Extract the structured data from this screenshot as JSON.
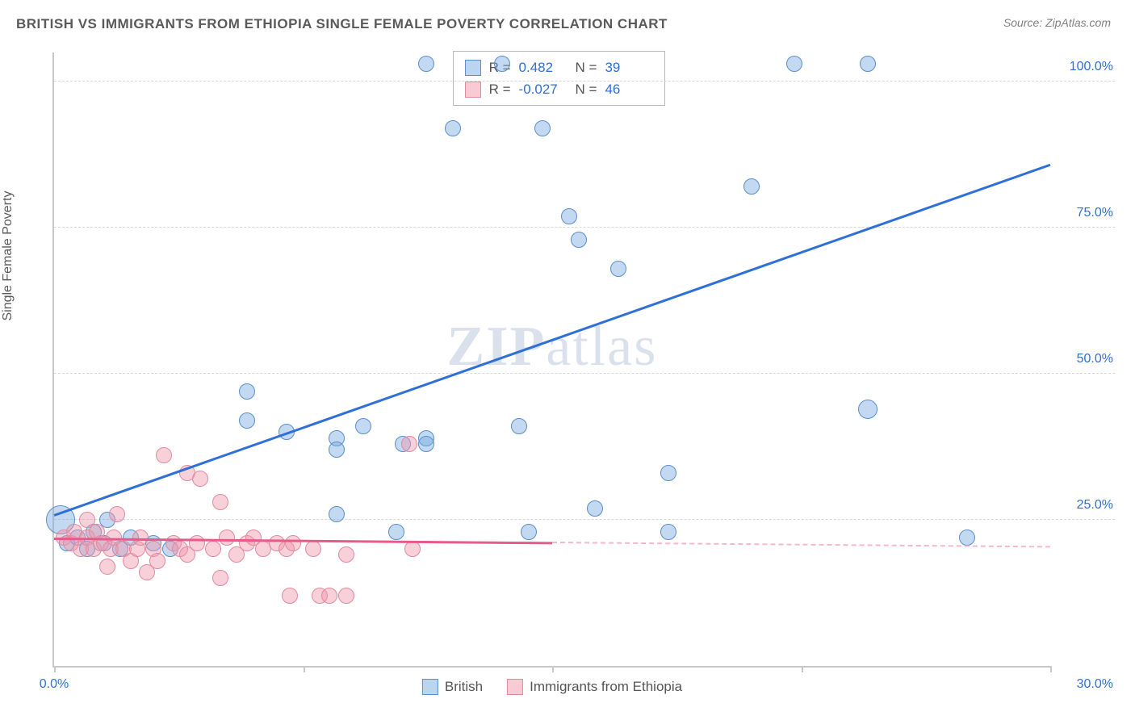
{
  "title": "BRITISH VS IMMIGRANTS FROM ETHIOPIA SINGLE FEMALE POVERTY CORRELATION CHART",
  "source": "Source: ZipAtlas.com",
  "ylabel": "Single Female Poverty",
  "watermark_bold": "ZIP",
  "watermark_rest": "atlas",
  "chart": {
    "type": "scatter",
    "xlim": [
      0,
      30
    ],
    "ylim": [
      0,
      105
    ],
    "yticks": [
      25,
      50,
      75,
      100
    ],
    "ytick_labels": [
      "25.0%",
      "50.0%",
      "75.0%",
      "100.0%"
    ],
    "xticks": [
      0,
      30
    ],
    "xtick_labels": [
      "0.0%",
      "30.0%"
    ],
    "xtick_marks": [
      0,
      7.5,
      15,
      22.5,
      30
    ],
    "background_color": "#ffffff",
    "grid_color": "#d8d8d8",
    "axis_color": "#c8c8c8",
    "text_color": "#5a5a5a",
    "tick_label_color": "#2e6fd8",
    "marker_radius": 10,
    "big_marker_radius": 18,
    "series": [
      {
        "name": "British",
        "color_fill": "rgba(120,170,225,0.45)",
        "color_stroke": "#5b8fce",
        "r": 0.482,
        "n": 39,
        "regression": {
          "x1": 0,
          "y1": 26,
          "x2": 30,
          "y2": 86,
          "color": "#2e6fd8"
        },
        "points": [
          [
            0.2,
            25,
            18
          ],
          [
            0.4,
            21,
            10
          ],
          [
            0.7,
            22,
            10
          ],
          [
            1.0,
            20,
            10
          ],
          [
            1.2,
            23,
            10
          ],
          [
            1.5,
            21,
            10
          ],
          [
            1.6,
            25,
            10
          ],
          [
            2.0,
            20,
            10
          ],
          [
            2.3,
            22,
            10
          ],
          [
            3.0,
            21,
            10
          ],
          [
            3.5,
            20,
            10
          ],
          [
            5.8,
            47,
            10
          ],
          [
            5.8,
            42,
            10
          ],
          [
            7.0,
            40,
            10
          ],
          [
            8.5,
            39,
            10
          ],
          [
            8.5,
            37,
            10
          ],
          [
            8.5,
            26,
            10
          ],
          [
            9.3,
            41,
            10
          ],
          [
            10.5,
            38,
            10
          ],
          [
            10.3,
            23,
            10
          ],
          [
            11.2,
            39,
            10
          ],
          [
            11.2,
            38,
            10
          ],
          [
            11.2,
            103,
            10
          ],
          [
            12.0,
            92,
            10
          ],
          [
            13.5,
            103,
            10
          ],
          [
            14.0,
            41,
            10
          ],
          [
            14.3,
            23,
            10
          ],
          [
            14.7,
            92,
            10
          ],
          [
            15.5,
            77,
            10
          ],
          [
            15.8,
            73,
            10
          ],
          [
            16.3,
            27,
            10
          ],
          [
            17.0,
            68,
            10
          ],
          [
            18.5,
            23,
            10
          ],
          [
            18.5,
            33,
            10
          ],
          [
            21.0,
            82,
            10
          ],
          [
            22.3,
            103,
            10
          ],
          [
            24.5,
            103,
            10
          ],
          [
            24.5,
            44,
            12
          ],
          [
            27.5,
            22,
            10
          ]
        ]
      },
      {
        "name": "Immigrants from Ethiopia",
        "color_fill": "rgba(240,150,170,0.45)",
        "color_stroke": "#e28aa0",
        "r": -0.027,
        "n": 46,
        "regression": {
          "x1": 0,
          "y1": 22,
          "x2": 30,
          "y2": 20.5,
          "color": "#e85a8a",
          "solid_until_x": 15
        },
        "points": [
          [
            0.3,
            22,
            10
          ],
          [
            0.5,
            21,
            10
          ],
          [
            0.6,
            23,
            10
          ],
          [
            0.8,
            20,
            10
          ],
          [
            1.0,
            22,
            10
          ],
          [
            1.0,
            25,
            10
          ],
          [
            1.2,
            20,
            10
          ],
          [
            1.3,
            23,
            10
          ],
          [
            1.4,
            21,
            10
          ],
          [
            1.6,
            17,
            10
          ],
          [
            1.7,
            20,
            10
          ],
          [
            1.8,
            22,
            10
          ],
          [
            1.9,
            26,
            10
          ],
          [
            2.1,
            20,
            10
          ],
          [
            2.3,
            18,
            10
          ],
          [
            2.5,
            20,
            10
          ],
          [
            2.6,
            22,
            10
          ],
          [
            2.8,
            16,
            10
          ],
          [
            3.0,
            20,
            10
          ],
          [
            3.1,
            18,
            10
          ],
          [
            3.3,
            36,
            10
          ],
          [
            3.6,
            21,
            10
          ],
          [
            3.8,
            20,
            10
          ],
          [
            4.0,
            19,
            10
          ],
          [
            4.0,
            33,
            10
          ],
          [
            4.3,
            21,
            10
          ],
          [
            4.4,
            32,
            10
          ],
          [
            4.8,
            20,
            10
          ],
          [
            5.0,
            15,
            10
          ],
          [
            5.0,
            28,
            10
          ],
          [
            5.2,
            22,
            10
          ],
          [
            5.5,
            19,
            10
          ],
          [
            5.8,
            21,
            10
          ],
          [
            6.0,
            22,
            10
          ],
          [
            6.3,
            20,
            10
          ],
          [
            6.7,
            21,
            10
          ],
          [
            7.0,
            20,
            10
          ],
          [
            7.1,
            12,
            10
          ],
          [
            7.2,
            21,
            10
          ],
          [
            7.8,
            20,
            10
          ],
          [
            8.0,
            12,
            10
          ],
          [
            8.3,
            12,
            10
          ],
          [
            8.8,
            19,
            10
          ],
          [
            8.8,
            12,
            10
          ],
          [
            10.7,
            38,
            10
          ],
          [
            10.8,
            20,
            10
          ]
        ]
      }
    ]
  },
  "stat_box": {
    "rows": [
      {
        "swatch": "blue",
        "r_label": "R =",
        "r_val": "0.482",
        "n_label": "N =",
        "n_val": "39"
      },
      {
        "swatch": "pink",
        "r_label": "R =",
        "r_val": "-0.027",
        "n_label": "N =",
        "n_val": "46"
      }
    ]
  },
  "bottom_legend": {
    "items": [
      {
        "swatch": "blue",
        "label": "British"
      },
      {
        "swatch": "pink",
        "label": "Immigrants from Ethiopia"
      }
    ]
  }
}
